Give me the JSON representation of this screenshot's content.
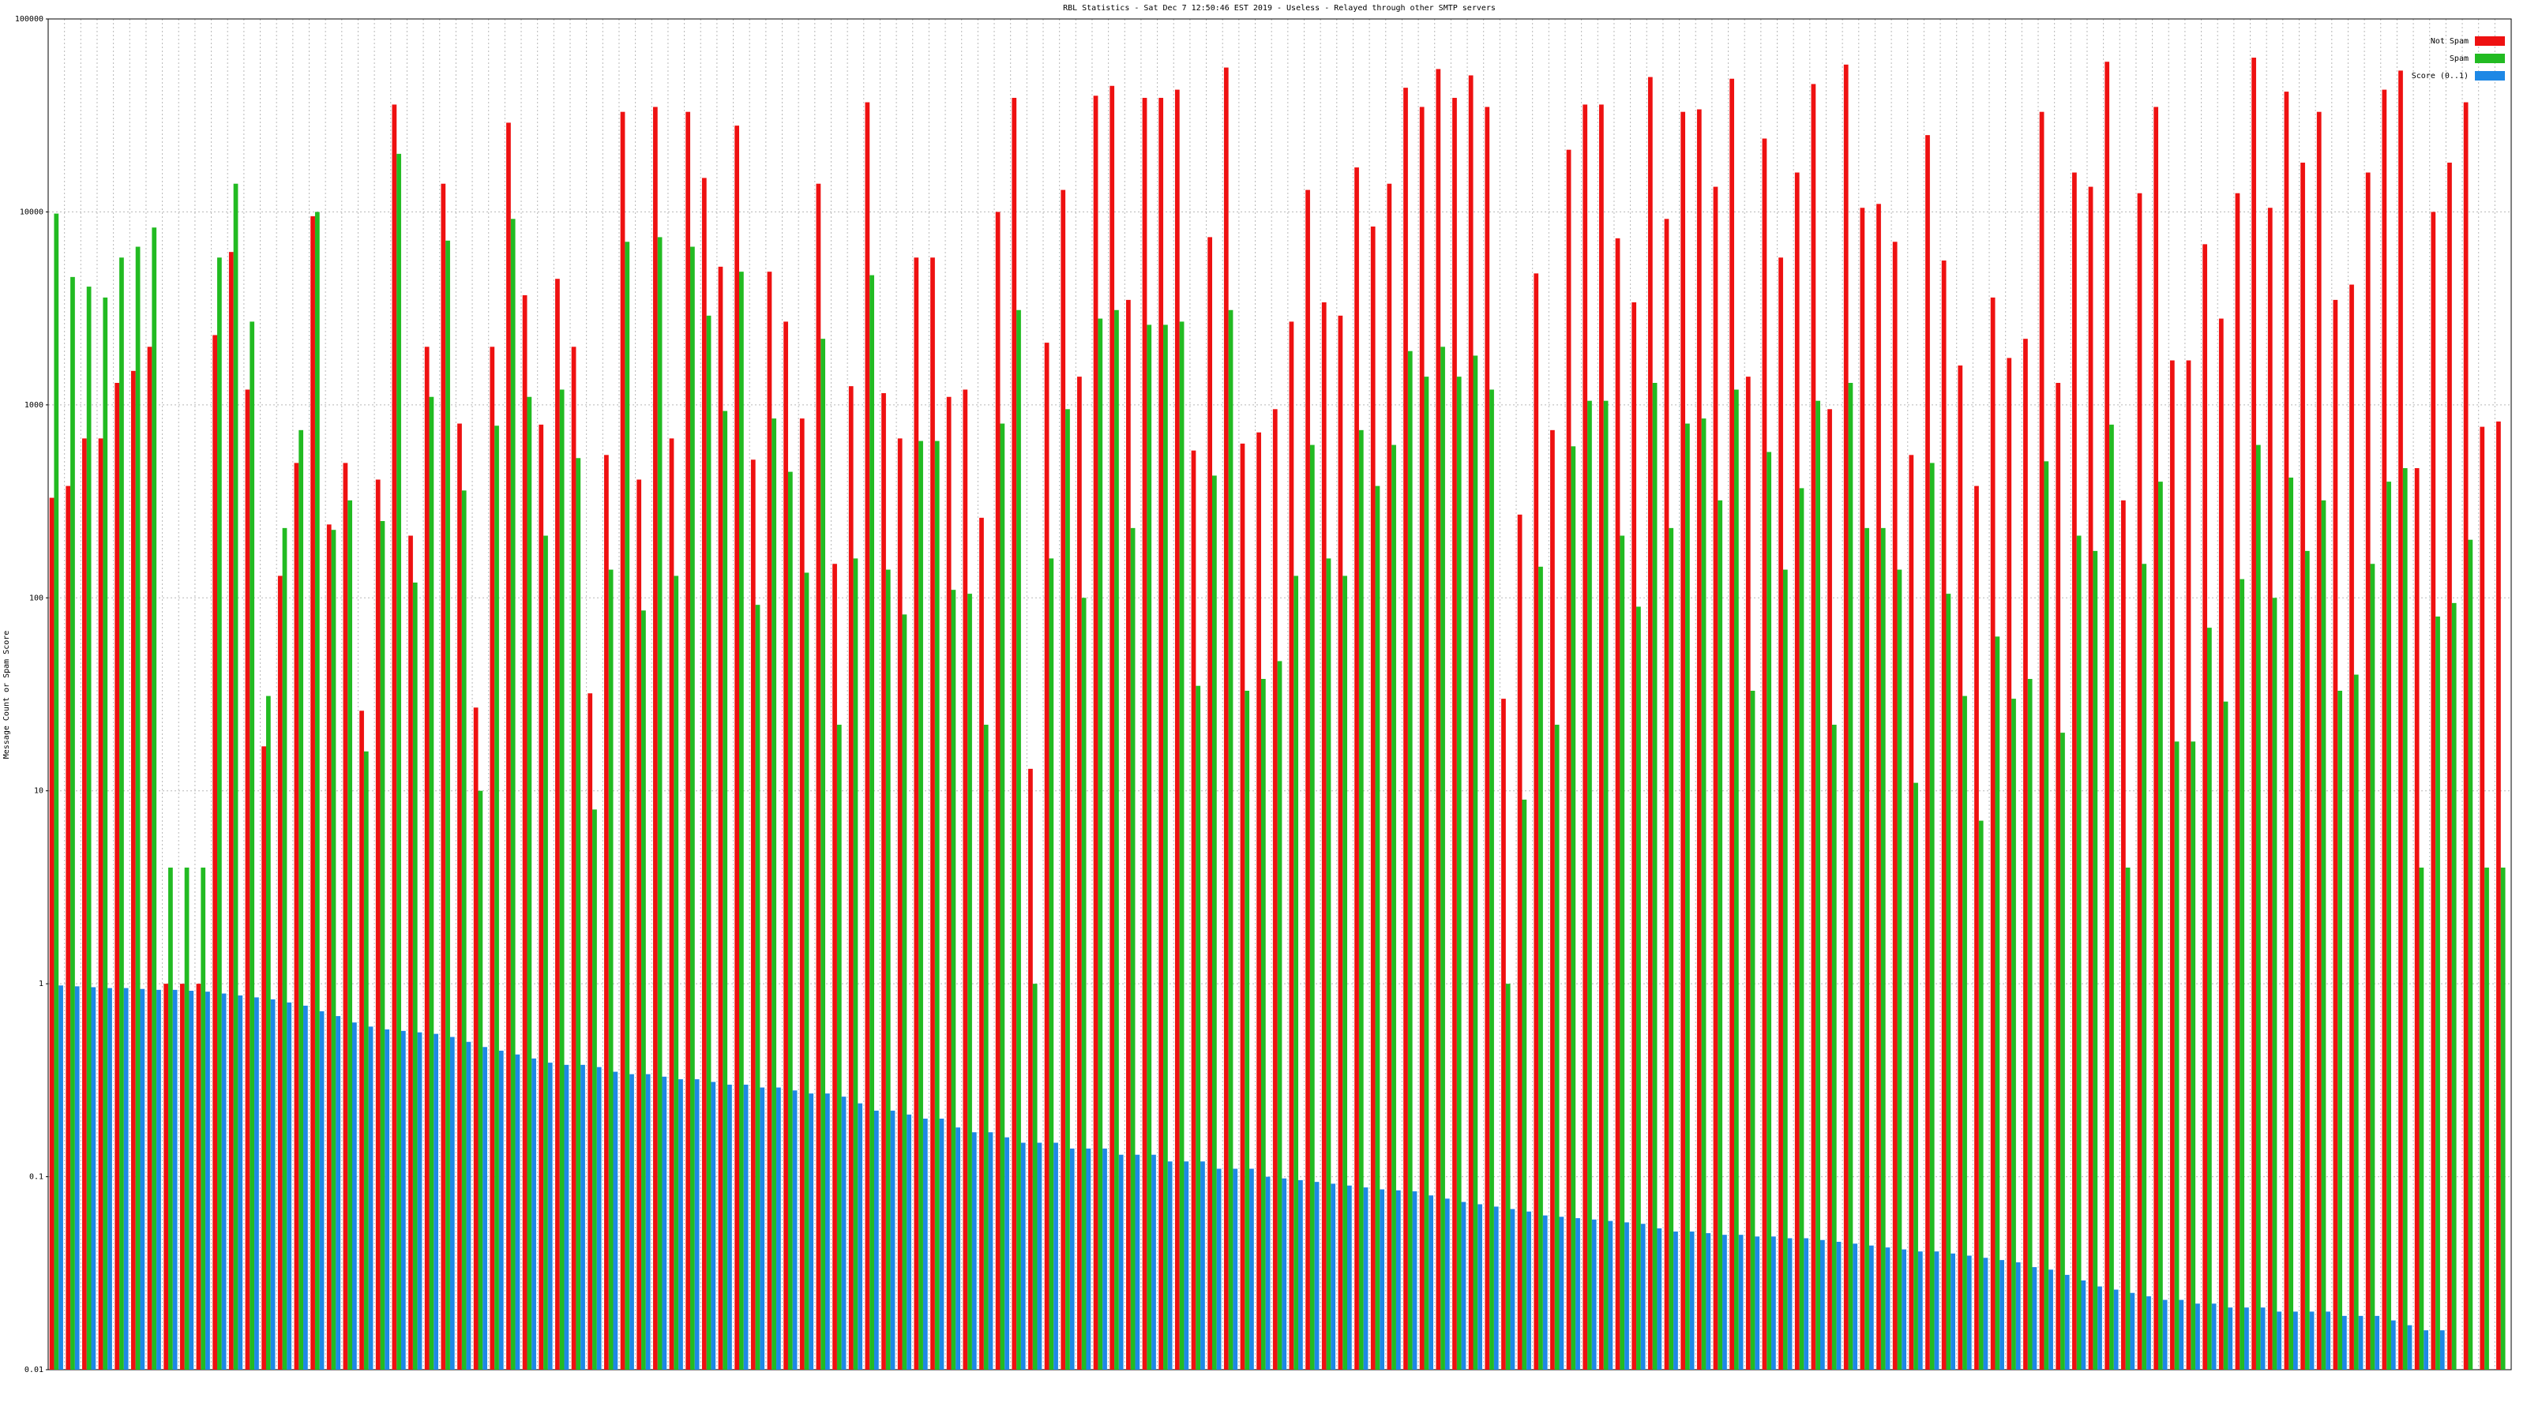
{
  "chart_data": {
    "type": "bar",
    "log_scale": true,
    "grid": true,
    "legend": "top-right",
    "title": "RBL Statistics - Sat Dec  7 12:50:46 EST 2019 - Useless - Relayed through other SMTP servers",
    "ylabel": "Message Count or Spam Score",
    "ylim": [
      0.01,
      100000
    ],
    "yticks": [
      0.01,
      0.1,
      1,
      10,
      100,
      1000,
      10000,
      100000
    ],
    "categories": [
      null,
      null,
      null,
      null,
      null,
      null,
      null,
      null,
      null,
      null,
      null,
      null,
      null,
      null,
      null,
      null,
      null,
      null,
      null,
      null,
      null,
      null,
      null,
      null,
      null,
      null,
      null,
      null,
      null,
      null,
      null,
      null,
      null,
      null,
      null,
      null,
      null,
      null,
      null,
      null,
      null,
      null,
      null,
      null,
      null,
      null,
      null,
      null,
      null,
      null,
      null,
      null,
      null,
      null,
      null,
      null,
      null,
      null,
      null,
      null,
      null,
      null,
      null,
      null,
      null,
      null,
      null,
      null,
      null,
      null,
      null,
      null,
      null,
      null,
      null,
      null,
      null,
      null,
      null,
      null,
      null,
      null,
      null,
      null,
      null,
      null,
      null,
      null,
      null,
      null,
      null,
      null,
      null,
      null,
      null,
      null,
      null,
      null,
      null,
      null,
      null,
      null,
      null,
      null,
      null,
      null,
      null,
      null,
      null,
      null,
      null,
      null,
      null,
      null,
      null,
      null,
      null,
      null,
      null,
      null,
      null,
      null,
      null,
      null,
      null,
      null,
      null,
      null,
      null,
      null,
      null,
      null,
      null,
      null,
      null,
      null,
      null,
      null,
      null,
      null,
      null,
      null,
      null,
      null,
      null,
      null,
      null,
      null,
      null,
      null,
      null
    ],
    "series": [
      {
        "name": "Not Spam",
        "color": "#ee1111",
        "values": [
          330,
          380,
          670,
          670,
          1300,
          1500,
          2000,
          1,
          1,
          1,
          2300,
          6200,
          1200,
          17,
          130,
          500,
          9500,
          240,
          500,
          26,
          410,
          36000,
          210,
          2000,
          14000,
          800,
          27,
          2000,
          29000,
          3700,
          790,
          4500,
          2000,
          32,
          550,
          33000,
          410,
          35000,
          670,
          33000,
          15000,
          5200,
          28000,
          520,
          4900,
          2700,
          850,
          14000,
          150,
          1250,
          37000,
          1150,
          670,
          5800,
          5800,
          1100,
          1200,
          260,
          10000,
          39000,
          13,
          2100,
          13000,
          1400,
          40000,
          45000,
          3500,
          39000,
          39000,
          43000,
          580,
          7400,
          56000,
          630,
          720,
          950,
          2700,
          13000,
          3400,
          2900,
          17000,
          8400,
          14000,
          44000,
          35000,
          55000,
          39000,
          51000,
          35000,
          30,
          270,
          4800,
          740,
          21000,
          36000,
          36000,
          7300,
          3400,
          50000,
          9200,
          33000,
          34000,
          13500,
          49000,
          1400,
          24000,
          5800,
          16000,
          46000,
          950,
          58000,
          10500,
          11000,
          7000,
          550,
          25000,
          5600,
          1600,
          380,
          3600,
          1750,
          2200,
          33000,
          1300,
          16000,
          13500,
          60000,
          320,
          12500,
          35000,
          1700,
          1700,
          6800,
          2800,
          12500,
          63000,
          10500,
          42000,
          18000,
          33000,
          3500,
          4200,
          16000,
          43000,
          54000,
          470,
          10000,
          18000,
          37000,
          770,
          820
        ]
      },
      {
        "name": "Spam",
        "color": "#22bb22",
        "values": [
          9800,
          4600,
          4100,
          3600,
          5800,
          6600,
          8300,
          4,
          4,
          4,
          5800,
          14000,
          2700,
          31,
          230,
          740,
          10000,
          225,
          320,
          16,
          250,
          20000,
          120,
          1100,
          7100,
          360,
          10,
          780,
          9200,
          1100,
          210,
          1200,
          530,
          8,
          140,
          7000,
          86,
          7400,
          130,
          6600,
          2900,
          930,
          4900,
          92,
          850,
          450,
          135,
          2200,
          22,
          160,
          4700,
          140,
          82,
          650,
          650,
          110,
          105,
          22,
          800,
          3100,
          1,
          160,
          950,
          100,
          2800,
          3100,
          230,
          2600,
          2600,
          2700,
          35,
          430,
          3100,
          33,
          38,
          47,
          130,
          620,
          160,
          130,
          740,
          380,
          620,
          1900,
          1400,
          2000,
          1400,
          1800,
          1200,
          1,
          9,
          145,
          22,
          610,
          1050,
          1050,
          210,
          90,
          1300,
          230,
          800,
          850,
          320,
          1200,
          33,
          570,
          140,
          370,
          1050,
          22,
          1300,
          230,
          230,
          140,
          11,
          500,
          105,
          31,
          7,
          63,
          30,
          38,
          510,
          20,
          210,
          175,
          790,
          4,
          150,
          400,
          18,
          18,
          70,
          29,
          125,
          620,
          100,
          420,
          175,
          320,
          33,
          40,
          150,
          400,
          470,
          4,
          80,
          94,
          200,
          4,
          4
        ]
      },
      {
        "name": "Score (0..1)",
        "color": "#1e88e5",
        "values": [
          0.98,
          0.97,
          0.96,
          0.95,
          0.95,
          0.94,
          0.93,
          0.93,
          0.92,
          0.91,
          0.89,
          0.87,
          0.85,
          0.83,
          0.8,
          0.77,
          0.72,
          0.68,
          0.63,
          0.6,
          0.58,
          0.57,
          0.56,
          0.55,
          0.53,
          0.5,
          0.47,
          0.45,
          0.43,
          0.41,
          0.39,
          0.38,
          0.38,
          0.37,
          0.35,
          0.34,
          0.34,
          0.33,
          0.32,
          0.32,
          0.31,
          0.3,
          0.3,
          0.29,
          0.29,
          0.28,
          0.27,
          0.27,
          0.26,
          0.24,
          0.22,
          0.22,
          0.21,
          0.2,
          0.2,
          0.18,
          0.17,
          0.17,
          0.16,
          0.15,
          0.15,
          0.15,
          0.14,
          0.14,
          0.14,
          0.13,
          0.13,
          0.13,
          0.12,
          0.12,
          0.12,
          0.11,
          0.11,
          0.11,
          0.1,
          0.098,
          0.096,
          0.094,
          0.092,
          0.09,
          0.088,
          0.086,
          0.085,
          0.084,
          0.08,
          0.077,
          0.074,
          0.072,
          0.07,
          0.068,
          0.066,
          0.063,
          0.062,
          0.061,
          0.06,
          0.059,
          0.058,
          0.057,
          0.054,
          0.052,
          0.052,
          0.051,
          0.05,
          0.05,
          0.049,
          0.049,
          0.048,
          0.048,
          0.047,
          0.046,
          0.045,
          0.044,
          0.043,
          0.042,
          0.041,
          0.041,
          0.04,
          0.039,
          0.038,
          0.037,
          0.036,
          0.034,
          0.033,
          0.031,
          0.029,
          0.027,
          0.026,
          0.025,
          0.024,
          0.023,
          0.023,
          0.022,
          0.022,
          0.021,
          0.021,
          0.021,
          0.02,
          0.02,
          0.02,
          0.02,
          0.019,
          0.019,
          0.019,
          0.018,
          0.017,
          0.016,
          0.016,
          0.01,
          0.01,
          0.01,
          0.01
        ]
      }
    ]
  }
}
